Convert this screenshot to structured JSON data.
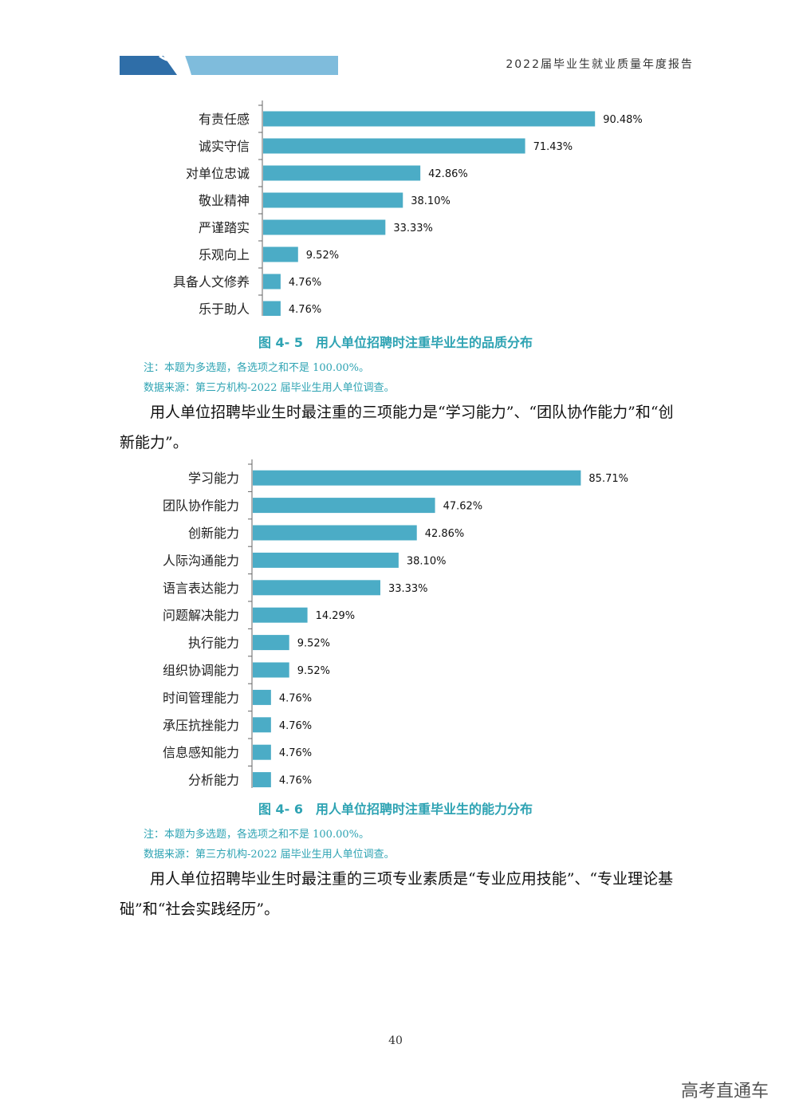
{
  "header": {
    "title": "2022届毕业生就业质量年度报告"
  },
  "chart_data": [
    {
      "type": "bar",
      "orientation": "horizontal",
      "categories": [
        "有责任感",
        "诚实守信",
        "对单位忠诚",
        "敬业精神",
        "严谨踏实",
        "乐观向上",
        "具备人文修养",
        "乐于助人"
      ],
      "values": [
        90.48,
        71.43,
        42.86,
        38.1,
        33.33,
        9.52,
        4.76,
        4.76
      ],
      "value_labels": [
        "90.48%",
        "71.43%",
        "42.86%",
        "38.10%",
        "33.33%",
        "9.52%",
        "4.76%",
        "4.76%"
      ],
      "title": "图 4- 5 用人单位招聘时注重毕业生的品质分布",
      "unit": "%",
      "xlim": [
        0,
        100
      ],
      "bar_color": "#4bacc6"
    },
    {
      "type": "bar",
      "orientation": "horizontal",
      "categories": [
        "学习能力",
        "团队协作能力",
        "创新能力",
        "人际沟通能力",
        "语言表达能力",
        "问题解决能力",
        "执行能力",
        "组织协调能力",
        "时间管理能力",
        "承压抗挫能力",
        "信息感知能力",
        "分析能力"
      ],
      "values": [
        85.71,
        47.62,
        42.86,
        38.1,
        33.33,
        14.29,
        9.52,
        9.52,
        4.76,
        4.76,
        4.76,
        4.76
      ],
      "value_labels": [
        "85.71%",
        "47.62%",
        "42.86%",
        "38.10%",
        "33.33%",
        "14.29%",
        "9.52%",
        "9.52%",
        "4.76%",
        "4.76%",
        "4.76%",
        "4.76%"
      ],
      "title": "图 4- 6 用人单位招聘时注重毕业生的能力分布",
      "unit": "%",
      "xlim": [
        0,
        100
      ],
      "bar_color": "#4bacc6"
    }
  ],
  "figure1": {
    "caption": "图 4- 5　用人单位招聘时注重毕业生的品质分布",
    "note": "注：本题为多选题，各选项之和不是 100.00%。",
    "source": "数据来源：第三方机构-2022 届毕业生用人单位调查。"
  },
  "paragraph1": "用人单位招聘毕业生时最注重的三项能力是“学习能力”、“团队协作能力”和“创新能力”。",
  "figure2": {
    "caption": "图 4- 6　用人单位招聘时注重毕业生的能力分布",
    "note": "注：本题为多选题，各选项之和不是 100.00%。",
    "source": "数据来源：第三方机构-2022 届毕业生用人单位调查。"
  },
  "paragraph2": "用人单位招聘毕业生时最注重的三项专业素质是“专业应用技能”、“专业理论基础”和“社会实践经历”。",
  "page_number": "40",
  "watermark": "高考直通车",
  "colors": {
    "accent": "#2ea3b3",
    "bar": "#4bacc6",
    "header_dark": "#2f6ea8",
    "header_light": "#7fbcdc"
  }
}
